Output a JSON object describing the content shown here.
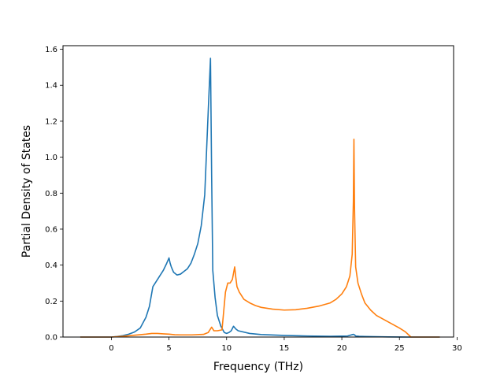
{
  "chart_data": {
    "type": "line",
    "xlabel": "Frequency (THz)",
    "ylabel": "Partial Density of States",
    "xlim": [
      -4.2,
      29.7
    ],
    "ylim": [
      0.0,
      1.62
    ],
    "xticks": [
      "0",
      "5",
      "10",
      "15",
      "20",
      "25",
      "30"
    ],
    "yticks": [
      "0.0",
      "0.2",
      "0.4",
      "0.6",
      "0.8",
      "1.0",
      "1.2",
      "1.4",
      "1.6"
    ],
    "grid": false,
    "series": [
      {
        "color": "#1f77b4",
        "x": [
          -2.7,
          0.0,
          0.5,
          1.0,
          1.5,
          2.0,
          2.5,
          3.0,
          3.3,
          3.6,
          3.9,
          4.2,
          4.5,
          4.8,
          5.0,
          5.1,
          5.2,
          5.4,
          5.7,
          6.0,
          6.3,
          6.6,
          6.9,
          7.2,
          7.5,
          7.8,
          8.1,
          8.4,
          8.6,
          8.7,
          8.8,
          9.0,
          9.2,
          9.5,
          9.8,
          10.0,
          10.2,
          10.4,
          10.6,
          10.8,
          11.0,
          12.0,
          13.0,
          15.0,
          17.0,
          19.0,
          20.5,
          21.0,
          21.1,
          21.2,
          21.5,
          22.0,
          23.0,
          24.0,
          25.0,
          25.7,
          26.0,
          28.5
        ],
        "y": [
          0.0,
          0.0,
          0.003,
          0.008,
          0.016,
          0.028,
          0.05,
          0.11,
          0.17,
          0.28,
          0.31,
          0.34,
          0.37,
          0.41,
          0.44,
          0.41,
          0.39,
          0.36,
          0.345,
          0.35,
          0.365,
          0.38,
          0.41,
          0.46,
          0.52,
          0.62,
          0.79,
          1.25,
          1.55,
          0.9,
          0.37,
          0.22,
          0.12,
          0.06,
          0.025,
          0.02,
          0.025,
          0.035,
          0.06,
          0.045,
          0.035,
          0.02,
          0.014,
          0.009,
          0.006,
          0.004,
          0.006,
          0.015,
          0.012,
          0.006,
          0.004,
          0.003,
          0.002,
          0.001,
          0.0005,
          0.0,
          0.0,
          0.0
        ]
      },
      {
        "color": "#ff7f0e",
        "x": [
          -2.7,
          0.0,
          1.0,
          2.0,
          3.0,
          3.5,
          4.0,
          4.5,
          5.0,
          5.5,
          6.0,
          7.0,
          8.0,
          8.4,
          8.7,
          8.9,
          9.2,
          9.6,
          9.9,
          10.1,
          10.3,
          10.5,
          10.7,
          10.8,
          10.9,
          11.1,
          11.5,
          12.0,
          12.5,
          13.0,
          14.0,
          15.0,
          16.0,
          17.0,
          18.0,
          19.0,
          19.5,
          20.0,
          20.4,
          20.7,
          20.9,
          21.0,
          21.05,
          21.1,
          21.2,
          21.4,
          21.7,
          22.0,
          22.5,
          23.0,
          24.0,
          25.0,
          25.5,
          25.8,
          26.0,
          28.5
        ],
        "y": [
          0.0,
          0.0,
          0.004,
          0.01,
          0.016,
          0.02,
          0.02,
          0.018,
          0.016,
          0.013,
          0.012,
          0.012,
          0.015,
          0.025,
          0.055,
          0.035,
          0.035,
          0.04,
          0.25,
          0.3,
          0.3,
          0.32,
          0.39,
          0.33,
          0.28,
          0.25,
          0.21,
          0.19,
          0.175,
          0.165,
          0.155,
          0.15,
          0.152,
          0.16,
          0.172,
          0.19,
          0.21,
          0.24,
          0.28,
          0.34,
          0.46,
          0.75,
          1.1,
          0.72,
          0.39,
          0.3,
          0.24,
          0.19,
          0.15,
          0.12,
          0.085,
          0.05,
          0.03,
          0.012,
          0.0,
          0.0
        ]
      }
    ]
  }
}
